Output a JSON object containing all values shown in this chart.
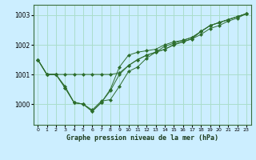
{
  "title": "Graphe pression niveau de la mer (hPa)",
  "background_color": "#cceeff",
  "grid_color": "#aaddcc",
  "line_color": "#2d6e2d",
  "x_ticks": [
    0,
    1,
    2,
    3,
    4,
    5,
    6,
    7,
    8,
    9,
    10,
    11,
    12,
    13,
    14,
    15,
    16,
    17,
    18,
    19,
    20,
    21,
    22,
    23
  ],
  "y_ticks": [
    1000,
    1001,
    1002,
    1003
  ],
  "ylim": [
    999.3,
    1003.35
  ],
  "xlim": [
    -0.5,
    23.5
  ],
  "series": [
    [
      1001.5,
      1001.0,
      1001.0,
      1001.0,
      1001.0,
      1001.0,
      1001.0,
      1001.0,
      1001.0,
      1001.05,
      1001.3,
      1001.5,
      1001.65,
      1001.75,
      1001.85,
      1002.0,
      1002.1,
      1002.2,
      1002.45,
      1002.65,
      1002.75,
      1002.85,
      1002.95,
      1003.05
    ],
    [
      1001.5,
      1001.0,
      1001.0,
      1000.6,
      1000.05,
      1000.0,
      999.8,
      1000.1,
      1000.15,
      1000.6,
      1001.1,
      1001.25,
      1001.55,
      1001.75,
      1001.85,
      1002.0,
      1002.1,
      1002.2,
      1002.35,
      1002.55,
      1002.65,
      1002.8,
      1002.9,
      1003.05
    ],
    [
      1001.5,
      1001.0,
      1001.0,
      1000.55,
      1000.05,
      1000.0,
      999.75,
      1000.05,
      1000.45,
      1001.0,
      1001.3,
      1001.5,
      1001.65,
      1001.75,
      1001.95,
      1002.05,
      1002.15,
      1002.25,
      1002.45,
      1002.65,
      1002.75,
      1002.85,
      1002.95,
      1003.05
    ],
    [
      1001.5,
      1001.0,
      1001.0,
      1000.55,
      1000.05,
      1000.0,
      999.75,
      1000.05,
      1000.5,
      1001.25,
      1001.65,
      1001.75,
      1001.8,
      1001.85,
      1002.0,
      1002.1,
      1002.15,
      1002.25,
      1002.45,
      1002.65,
      1002.75,
      1002.85,
      1002.95,
      1003.05
    ]
  ]
}
